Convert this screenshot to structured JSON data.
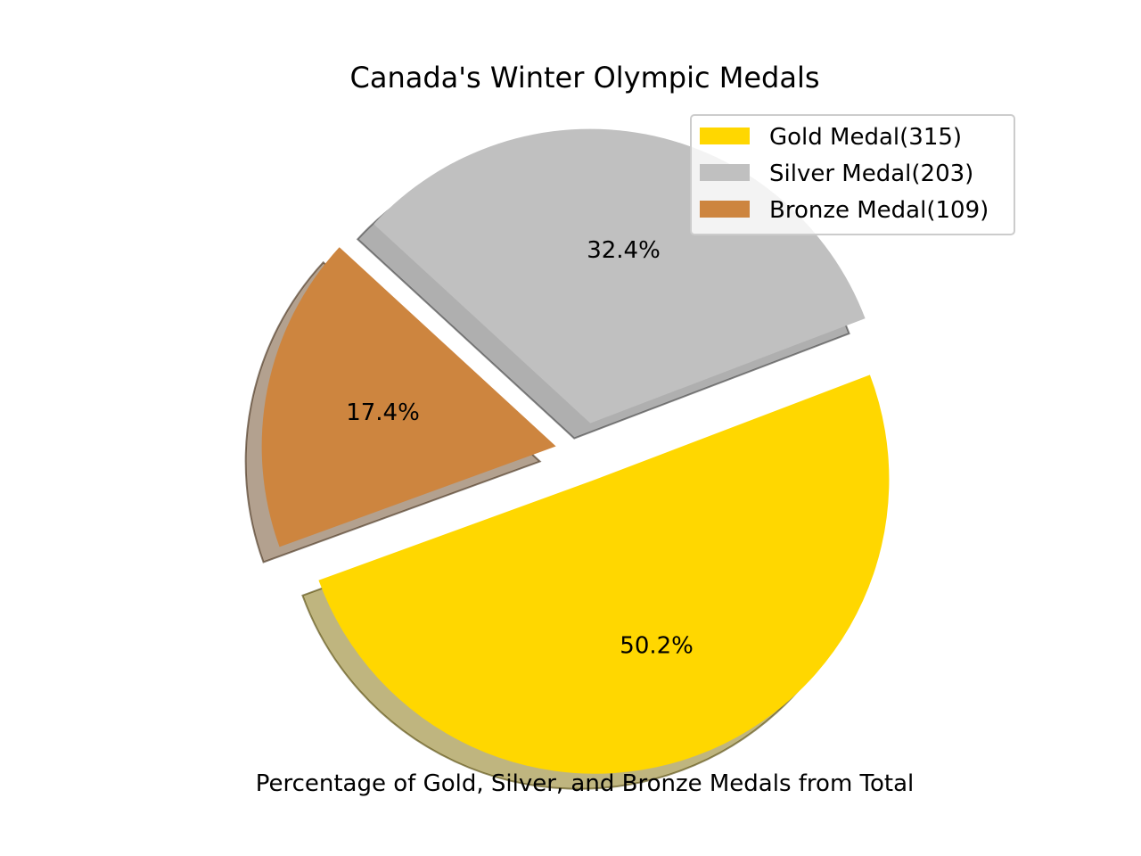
{
  "chart_data": {
    "type": "pie",
    "title": "Canada's Winter Olympic Medals",
    "xlabel": "Percentage of Gold, Silver, and Bronze Medals from Total",
    "slices": [
      {
        "label": "Gold Medal(315)",
        "value": 315,
        "percent_label": "50.2%",
        "color": "#ffd700",
        "exploded": true
      },
      {
        "label": "Silver Medal(203)",
        "value": 203,
        "percent_label": "32.4%",
        "color": "#c0c0c0",
        "exploded": true
      },
      {
        "label": "Bronze Medal(109)",
        "value": 109,
        "percent_label": "17.4%",
        "color": "#cd853f",
        "exploded": true
      }
    ],
    "start_angle_deg": 200,
    "shadow": true,
    "legend_placement": "upper-right"
  }
}
